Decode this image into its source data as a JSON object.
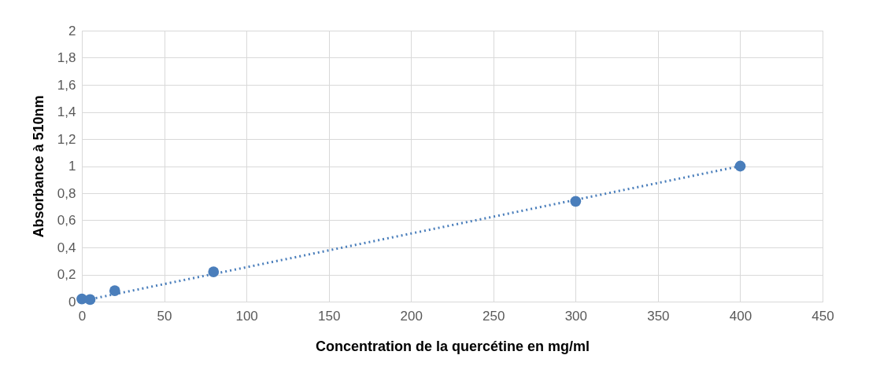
{
  "chart_data": {
    "type": "scatter",
    "xlabel": "Concentration de la quercétine en mg/ml",
    "ylabel": "Absorbance à 510nm",
    "x": [
      0,
      5,
      20,
      80,
      300,
      400
    ],
    "series": [
      {
        "color": "#4a7ebb",
        "marker": "circle",
        "values": [
          0.02,
          0.015,
          0.08,
          0.22,
          0.74,
          1.0
        ]
      },
      {
        "type": "line",
        "color": "#4a7ebb",
        "line_style": "dotted",
        "x": [
          0,
          400
        ],
        "values": [
          0.005,
          1.0
        ]
      }
    ],
    "xlim": [
      0,
      450
    ],
    "xticks": [
      0,
      50,
      100,
      150,
      200,
      250,
      300,
      350,
      400,
      450
    ],
    "ylim": [
      0,
      2
    ],
    "yticks": [
      0,
      {
        "value": 0.2,
        "label": "0,2"
      },
      {
        "value": 0.4,
        "label": "0,4"
      },
      {
        "value": 0.6,
        "label": "0,6"
      },
      {
        "value": 0.8,
        "label": "0,8"
      },
      1,
      {
        "value": 1.2,
        "label": "1,2"
      },
      {
        "value": 1.4,
        "label": "1,4"
      },
      {
        "value": 1.6,
        "label": "1,6"
      },
      {
        "value": 1.8,
        "label": "1,8"
      },
      2
    ],
    "grid": true,
    "legend": false
  }
}
